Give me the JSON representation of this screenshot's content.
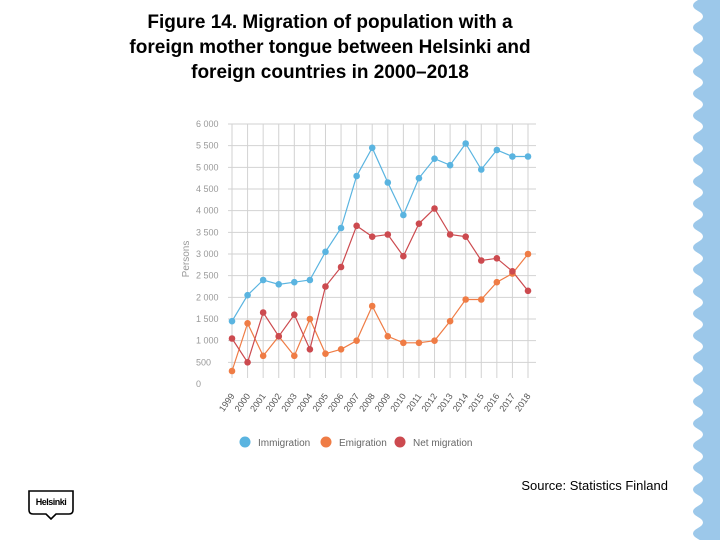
{
  "title_lines": [
    "Figure 14. Migration of population with a",
    "foreign mother tongue between Helsinki and",
    "foreign countries in 2000–2018"
  ],
  "source": "Source: Statistics Finland",
  "logo_text": "Helsinki",
  "colors": {
    "immigration": "#5ab4e0",
    "emigration": "#ef7c45",
    "net_migration": "#cc4a4f",
    "grid": "#d2d2d2",
    "axis_text": "#999999",
    "deco": "#9cc8ea"
  },
  "chart_data": {
    "type": "line",
    "ylabel": "Persons",
    "ylim": [
      0,
      6000
    ],
    "yticks": [
      "0",
      "500",
      "1 000",
      "1 500",
      "2 000",
      "2 500",
      "3 000",
      "3 500",
      "4 000",
      "4 500",
      "5 000",
      "5 500",
      "6 000"
    ],
    "categories": [
      "1999",
      "2000",
      "2001",
      "2002",
      "2003",
      "2004",
      "2005",
      "2006",
      "2007",
      "2008",
      "2009",
      "2010",
      "2011",
      "2012",
      "2013",
      "2014",
      "2015",
      "2016",
      "2017",
      "2018"
    ],
    "grid": true,
    "legend_position": "bottom",
    "series": [
      {
        "name": "Immigration",
        "values": [
          1450,
          2050,
          2400,
          2300,
          2350,
          2400,
          3050,
          3600,
          4800,
          5450,
          4650,
          3900,
          4750,
          5200,
          5050,
          5550,
          4950,
          5400,
          5250,
          5250
        ]
      },
      {
        "name": "Emigration",
        "values": [
          300,
          1400,
          650,
          1100,
          650,
          1500,
          700,
          800,
          1000,
          1800,
          1100,
          950,
          950,
          1000,
          1450,
          1950,
          1950,
          2350,
          2550,
          3000
        ]
      },
      {
        "name": "Net migration",
        "values": [
          1050,
          500,
          1650,
          1100,
          1600,
          800,
          2250,
          2700,
          3650,
          3400,
          3450,
          2950,
          3700,
          4050,
          3450,
          3400,
          2850,
          2900,
          2600,
          2150
        ]
      }
    ]
  }
}
